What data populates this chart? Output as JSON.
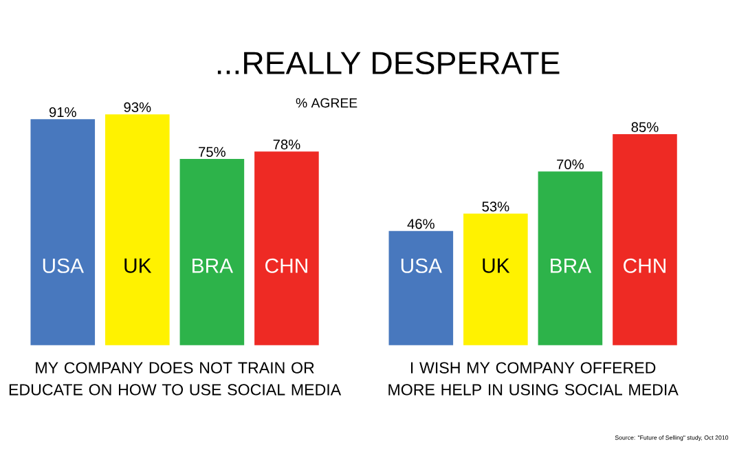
{
  "chart_data": [
    {
      "type": "bar",
      "title": "...REALLY DESPERATE",
      "subtitle": "% AGREE",
      "xlabel": "MY COMPANY DOES NOT TRAIN OR EDUCATE ON HOW TO USE SOCIAL MEDIA",
      "categories": [
        "USA",
        "UK",
        "BRA",
        "CHN"
      ],
      "values": [
        91,
        93,
        75,
        78
      ],
      "value_labels": [
        "91%",
        "93%",
        "75%",
        "78%"
      ],
      "colors": [
        "#4878be",
        "#fff200",
        "#2db34a",
        "#ee2a24"
      ]
    },
    {
      "type": "bar",
      "xlabel": "I WISH MY COMPANY OFFERED MORE HELP IN USING SOCIAL MEDIA",
      "categories": [
        "USA",
        "UK",
        "BRA",
        "CHN"
      ],
      "values": [
        46,
        53,
        70,
        85
      ],
      "value_labels": [
        "46%",
        "53%",
        "70%",
        "85%"
      ],
      "colors": [
        "#4878be",
        "#fff200",
        "#2db34a",
        "#ee2a24"
      ],
      "annotations": [
        "Source: \"Future of Selling\" study, Oct 2010"
      ]
    }
  ]
}
